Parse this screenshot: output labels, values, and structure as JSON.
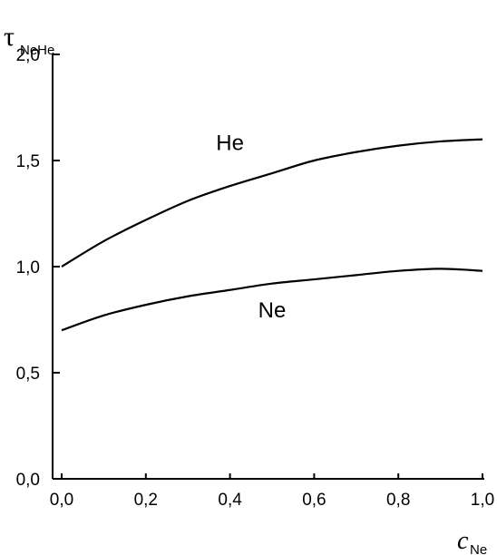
{
  "chart_data": {
    "type": "line",
    "xlabel": "c",
    "xlabel_sub": "Ne",
    "ylabel": "τ",
    "ylabel_sub": "NeHe",
    "xlim": [
      0.0,
      1.0
    ],
    "ylim": [
      0.0,
      2.0
    ],
    "xticks": [
      "0,0",
      "0,2",
      "0,4",
      "0,6",
      "0,8",
      "1,0"
    ],
    "yticks": [
      "0,0",
      "0,5",
      "1,0",
      "1,5",
      "2,0"
    ],
    "grid": false,
    "series": [
      {
        "name": "He",
        "x": [
          0.0,
          0.1,
          0.2,
          0.3,
          0.4,
          0.5,
          0.6,
          0.7,
          0.8,
          0.9,
          1.0
        ],
        "y": [
          1.0,
          1.12,
          1.22,
          1.31,
          1.38,
          1.44,
          1.5,
          1.54,
          1.57,
          1.59,
          1.6
        ]
      },
      {
        "name": "Ne",
        "x": [
          0.0,
          0.1,
          0.2,
          0.3,
          0.4,
          0.5,
          0.6,
          0.7,
          0.8,
          0.9,
          1.0
        ],
        "y": [
          0.7,
          0.77,
          0.82,
          0.86,
          0.89,
          0.92,
          0.94,
          0.96,
          0.98,
          0.99,
          0.98
        ]
      }
    ]
  }
}
